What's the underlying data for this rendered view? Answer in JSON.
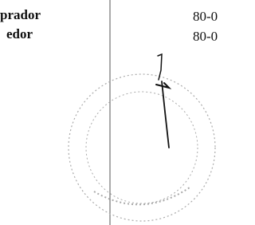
{
  "left_labels": [
    "prador",
    "edor"
  ],
  "right_values": [
    "80-0",
    "80-0"
  ]
}
